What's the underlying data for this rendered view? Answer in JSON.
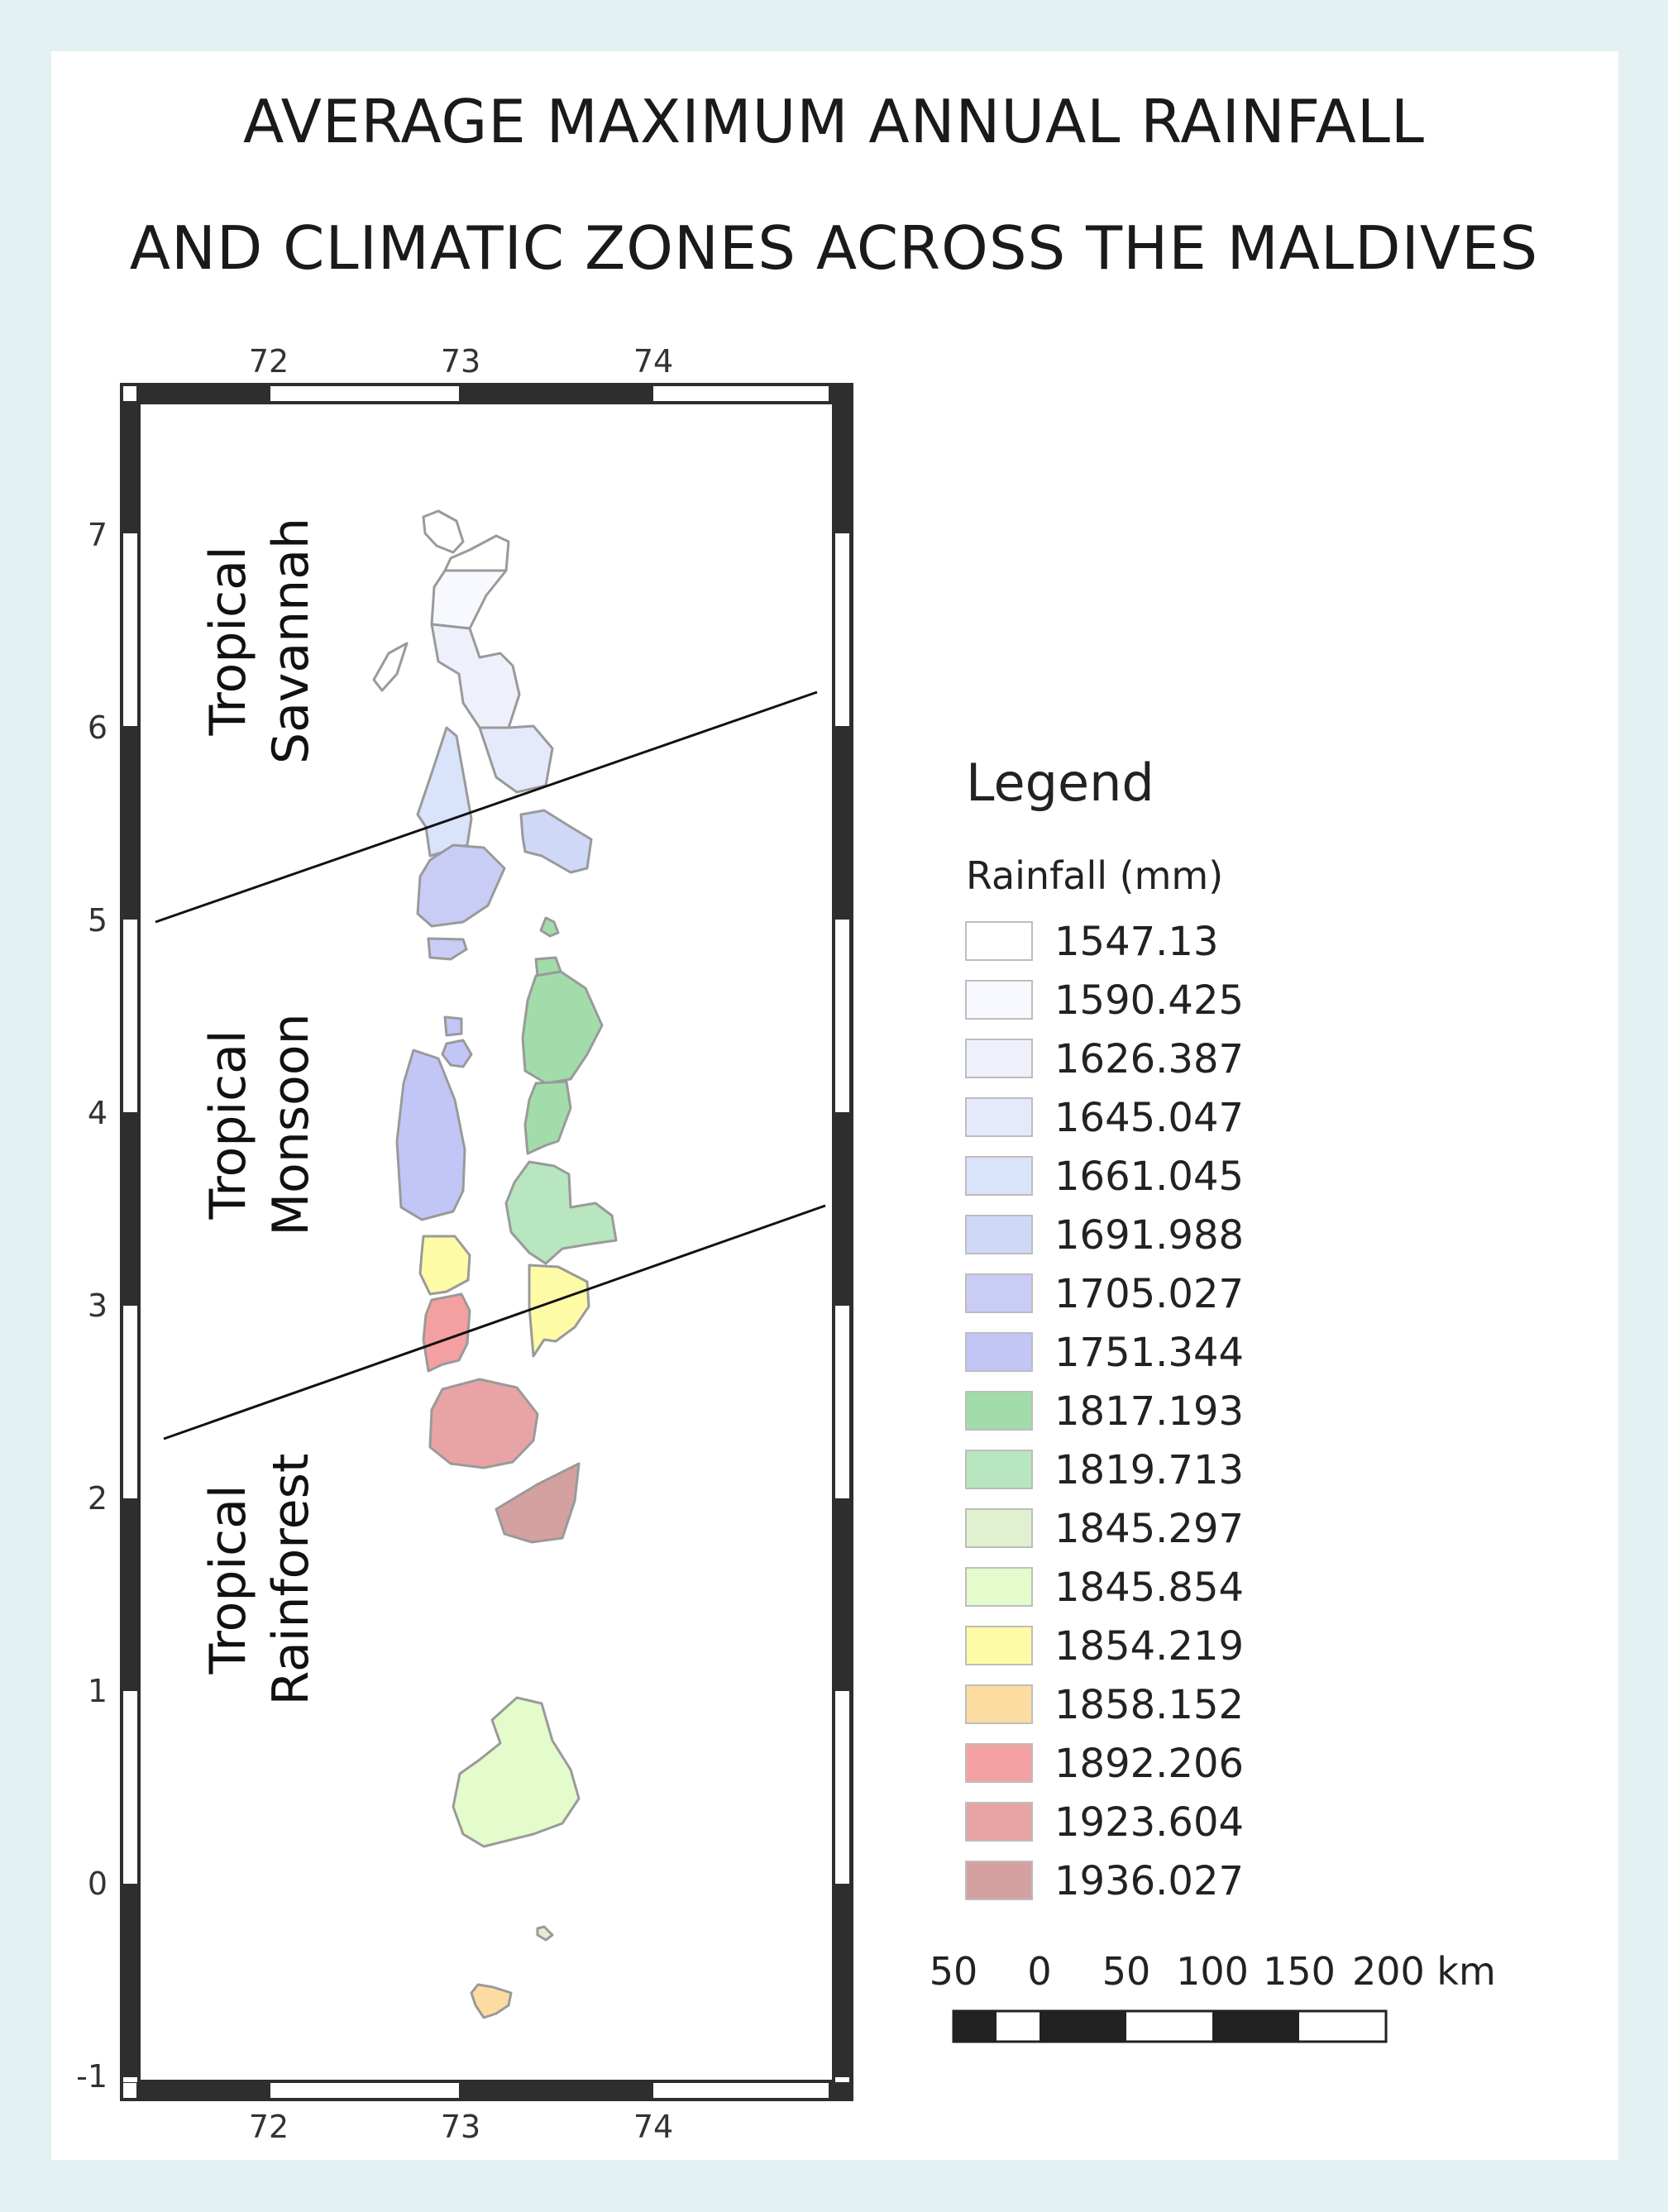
{
  "title_line1": "AVERAGE MAXIMUM ANNUAL RAINFALL",
  "title_line2": "AND CLIMATIC ZONES ACROSS THE MALDIVES",
  "axes": {
    "x_ticks": [
      "72",
      "73",
      "74"
    ],
    "y_ticks": [
      "7",
      "6",
      "5",
      "4",
      "3",
      "2",
      "1",
      "0",
      "-1"
    ]
  },
  "zones": {
    "savannah": [
      "Tropical",
      "Savannah"
    ],
    "monsoon": [
      "Tropical",
      "Monsoon"
    ],
    "rainforest": [
      "Tropical",
      "Rainforest"
    ]
  },
  "legend": {
    "title": "Legend",
    "subtitle": "Rainfall (mm)",
    "items": [
      {
        "value": "1547.13",
        "color": "#ffffff"
      },
      {
        "value": "1590.425",
        "color": "#f7f9ff"
      },
      {
        "value": "1626.387",
        "color": "#eef1fc"
      },
      {
        "value": "1645.047",
        "color": "#e4eafb"
      },
      {
        "value": "1661.045",
        "color": "#d9e4fb"
      },
      {
        "value": "1691.988",
        "color": "#d0d8f8"
      },
      {
        "value": "1705.027",
        "color": "#c9cdf6"
      },
      {
        "value": "1751.344",
        "color": "#c2c6f6"
      },
      {
        "value": "1817.193",
        "color": "#a2dcaa"
      },
      {
        "value": "1819.713",
        "color": "#b8e6be"
      },
      {
        "value": "1845.297",
        "color": "#e1f0cf"
      },
      {
        "value": "1845.854",
        "color": "#e4fbcb"
      },
      {
        "value": "1854.219",
        "color": "#fdfba6"
      },
      {
        "value": "1858.152",
        "color": "#fddca2"
      },
      {
        "value": "1892.206",
        "color": "#f5a0a0"
      },
      {
        "value": "1923.604",
        "color": "#e8a4a4"
      },
      {
        "value": "1936.027",
        "color": "#d4a0a0"
      }
    ]
  },
  "scale_bar": {
    "labels": [
      "50",
      "0",
      "50",
      "100",
      "150",
      "200 km"
    ]
  },
  "colors": {
    "background": "#e3f1f2",
    "frame": "#2e2e2e"
  }
}
